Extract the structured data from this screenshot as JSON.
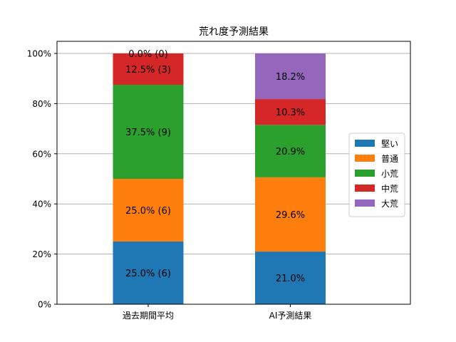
{
  "chart_data": {
    "type": "bar",
    "stacked": true,
    "title": "荒れ度予測結果",
    "xlabel": "",
    "ylabel": "",
    "categories": [
      "過去期間平均",
      "AI予測結果"
    ],
    "ylim": [
      0,
      100
    ],
    "y_ticks": [
      "0%",
      "20%",
      "40%",
      "60%",
      "80%",
      "100%"
    ],
    "grid": "horizontal",
    "legend_position": "center-right",
    "series": [
      {
        "name": "堅い",
        "color": "#1f77b4",
        "values": [
          25.0,
          21.0
        ],
        "labels": [
          "25.0% (6)",
          "21.0%"
        ]
      },
      {
        "name": "普通",
        "color": "#ff7f0e",
        "values": [
          25.0,
          29.6
        ],
        "labels": [
          "25.0% (6)",
          "29.6%"
        ]
      },
      {
        "name": "小荒",
        "color": "#2ca02c",
        "values": [
          37.5,
          20.9
        ],
        "labels": [
          "37.5% (9)",
          "20.9%"
        ]
      },
      {
        "name": "中荒",
        "color": "#d62728",
        "values": [
          12.5,
          10.3
        ],
        "labels": [
          "12.5% (3)",
          "10.3%"
        ]
      },
      {
        "name": "大荒",
        "color": "#9467bd",
        "values": [
          0.0,
          18.2
        ],
        "labels": [
          "0.0% (0)",
          "18.2%"
        ]
      }
    ]
  }
}
